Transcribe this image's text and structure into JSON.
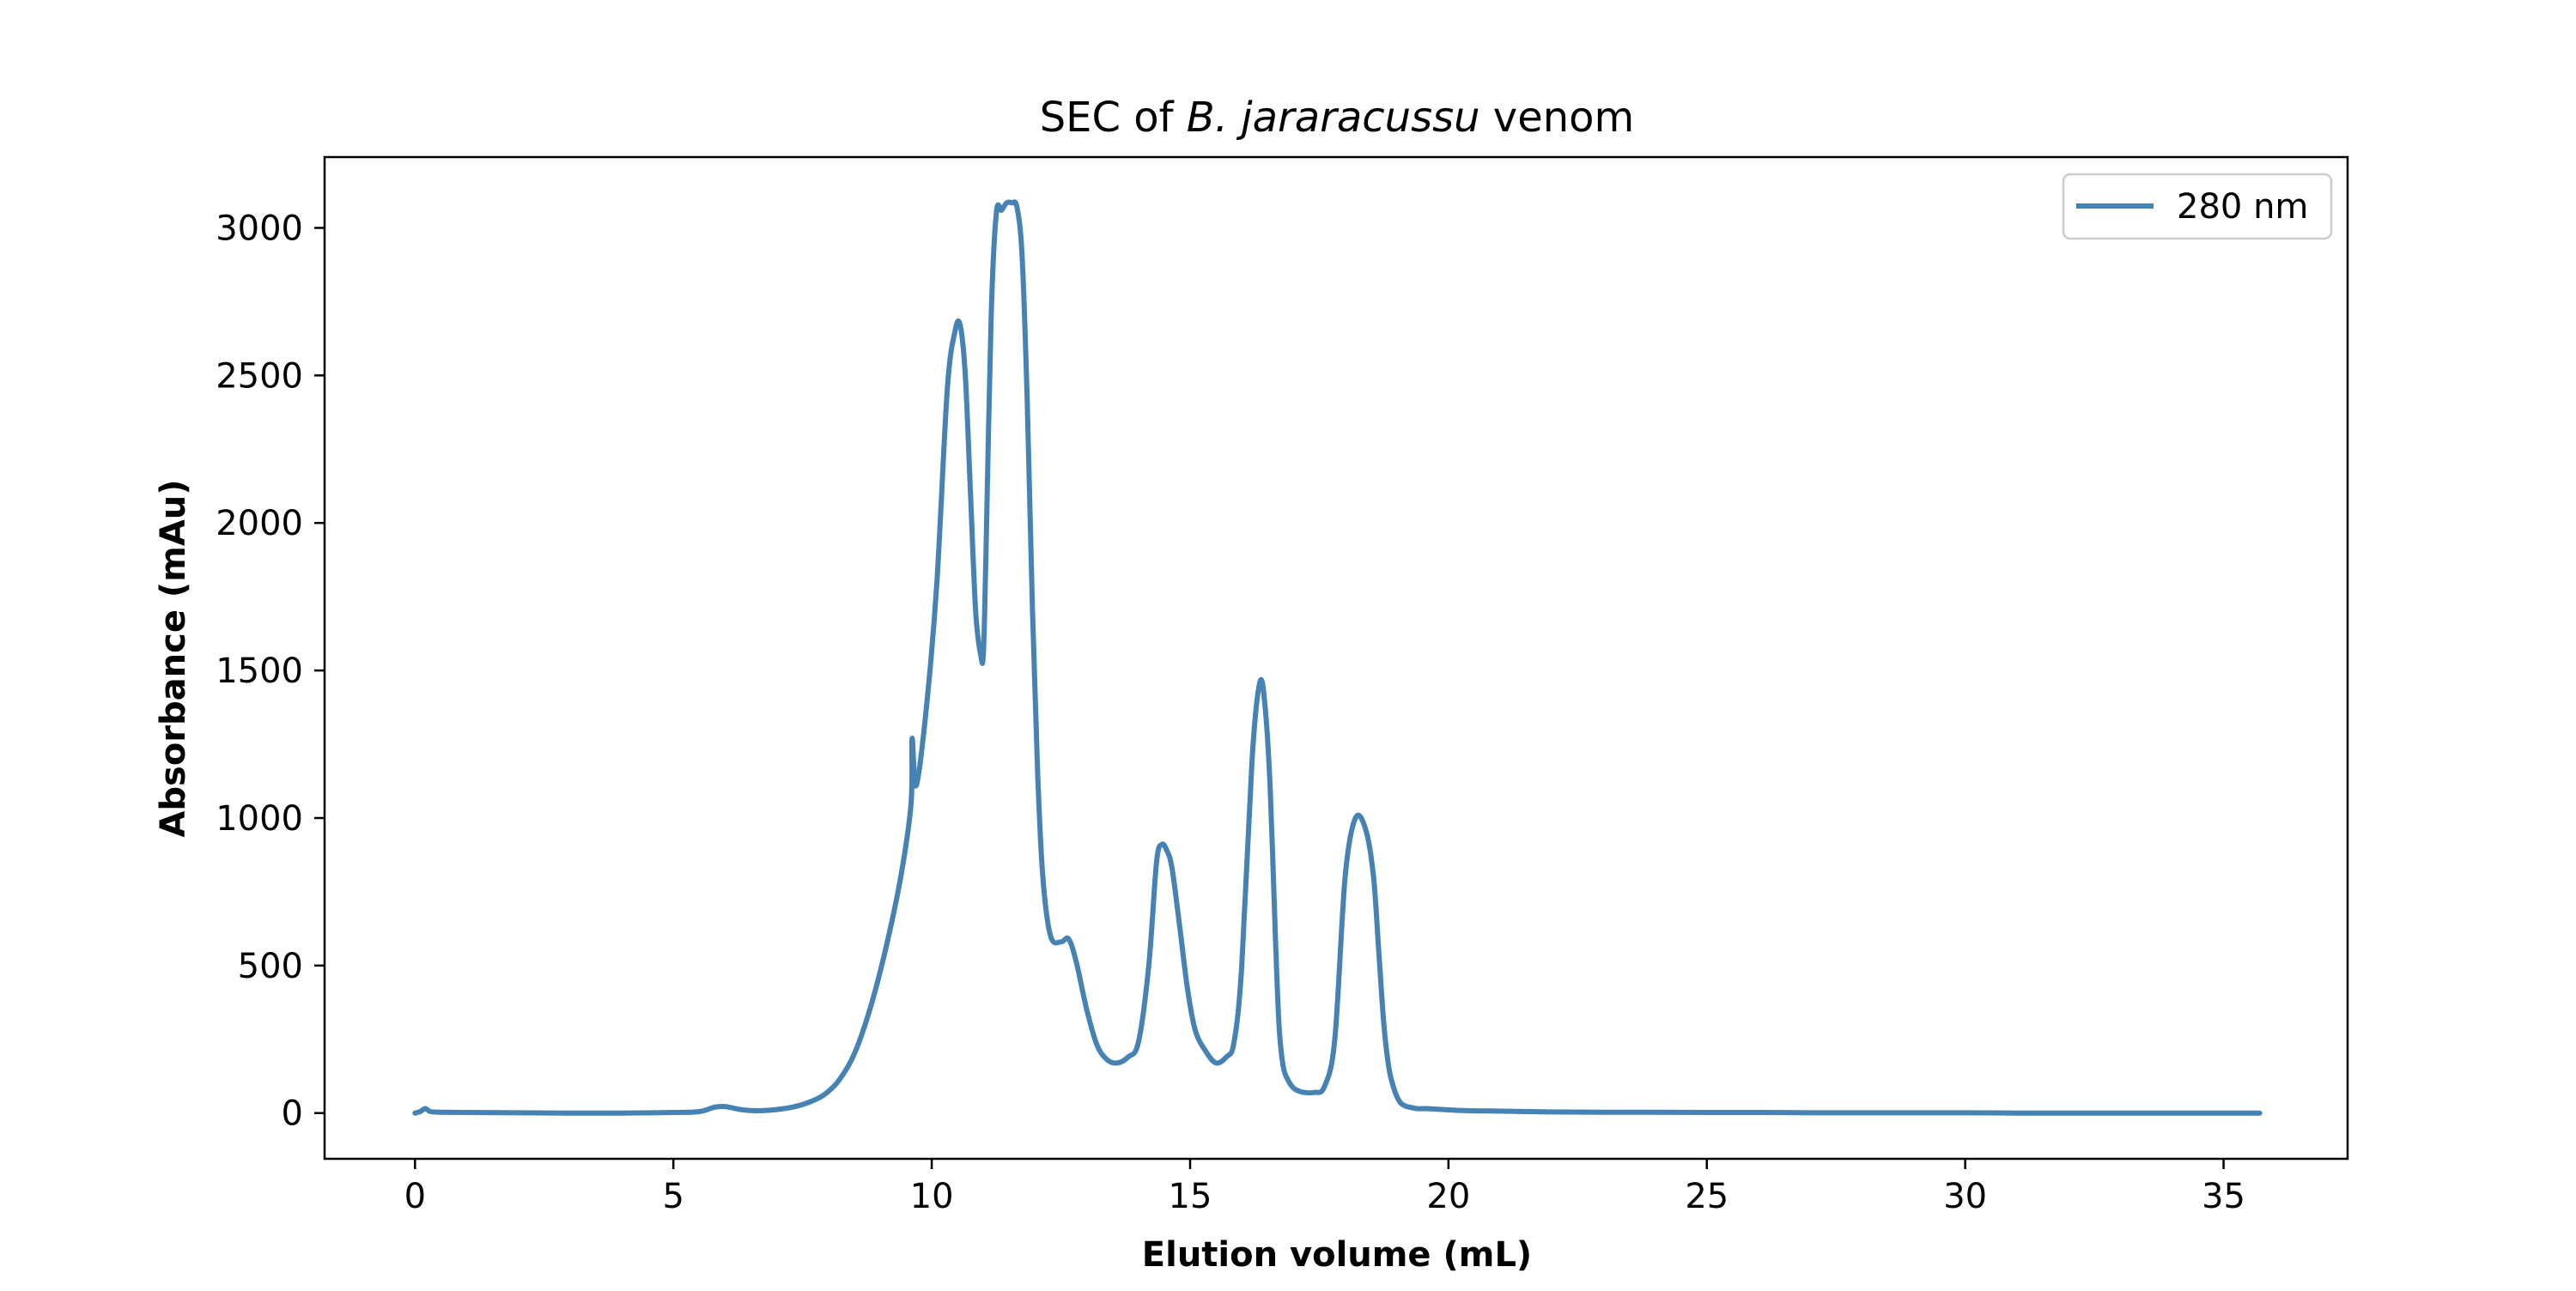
{
  "chart_data": {
    "type": "line",
    "title": {
      "prefix": "SEC of ",
      "italic": "B. jararacussu",
      "suffix": " venom"
    },
    "xlabel": "Elution volume (mL)",
    "ylabel": "Absorbance (mAu)",
    "xlim": [
      -1.75,
      37.4
    ],
    "ylim": [
      -155,
      3240
    ],
    "xticks": [
      0,
      5,
      10,
      15,
      20,
      25,
      30,
      35
    ],
    "yticks": [
      0,
      500,
      1000,
      1500,
      2000,
      2500,
      3000
    ],
    "grid": false,
    "legend_position": "top-right",
    "series": [
      {
        "name": "280 nm",
        "color": "#4682b4",
        "x": [
          0.0,
          0.1,
          0.2,
          0.3,
          0.5,
          1.0,
          2.0,
          3.0,
          4.0,
          5.0,
          5.5,
          5.8,
          6.0,
          6.3,
          6.6,
          7.0,
          7.3,
          7.6,
          7.9,
          8.2,
          8.5,
          8.8,
          9.1,
          9.4,
          9.6,
          9.62,
          9.7,
          9.9,
          10.1,
          10.3,
          10.45,
          10.55,
          10.65,
          10.75,
          10.85,
          10.95,
          11.0,
          11.05,
          11.15,
          11.25,
          11.35,
          11.45,
          11.55,
          11.65,
          11.75,
          11.85,
          11.95,
          12.05,
          12.15,
          12.3,
          12.5,
          12.65,
          12.8,
          13.0,
          13.2,
          13.4,
          13.6,
          13.8,
          14.0,
          14.2,
          14.35,
          14.45,
          14.55,
          14.65,
          14.8,
          14.95,
          15.1,
          15.3,
          15.5,
          15.7,
          15.85,
          16.0,
          16.2,
          16.35,
          16.45,
          16.55,
          16.65,
          16.72,
          16.8,
          16.9,
          17.0,
          17.1,
          17.2,
          17.4,
          17.6,
          17.8,
          18.0,
          18.2,
          18.4,
          18.55,
          18.65,
          18.75,
          18.85,
          18.95,
          19.05,
          19.15,
          19.25,
          19.4,
          19.55,
          19.7,
          19.9,
          20.1,
          20.4,
          20.8,
          21.2,
          21.6,
          22.0,
          23.0,
          24.0,
          25.0,
          26.0,
          27.0,
          28.0,
          29.0,
          30.0,
          31.0,
          32.0,
          33.0,
          34.0,
          35.0,
          35.7
        ],
        "y": [
          0,
          5,
          15,
          5,
          3,
          2,
          1,
          0,
          0,
          2,
          5,
          20,
          22,
          12,
          8,
          12,
          20,
          35,
          60,
          110,
          200,
          350,
          550,
          800,
          1050,
          1270,
          1110,
          1380,
          1800,
          2450,
          2650,
          2670,
          2500,
          2100,
          1700,
          1550,
          1560,
          1900,
          2700,
          3050,
          3060,
          3085,
          3085,
          3070,
          2900,
          2400,
          1700,
          1150,
          800,
          600,
          580,
          590,
          510,
          350,
          230,
          180,
          170,
          190,
          240,
          500,
          850,
          910,
          890,
          830,
          630,
          420,
          280,
          210,
          170,
          190,
          240,
          500,
          1200,
          1460,
          1380,
          1100,
          600,
          300,
          160,
          110,
          85,
          75,
          70,
          70,
          90,
          250,
          800,
          1000,
          960,
          800,
          550,
          300,
          150,
          80,
          40,
          25,
          20,
          15,
          15,
          14,
          12,
          10,
          8,
          7,
          6,
          5,
          4,
          3,
          3,
          2,
          2,
          1,
          1,
          1,
          1,
          0,
          0,
          0,
          0,
          0,
          0
        ]
      }
    ]
  }
}
